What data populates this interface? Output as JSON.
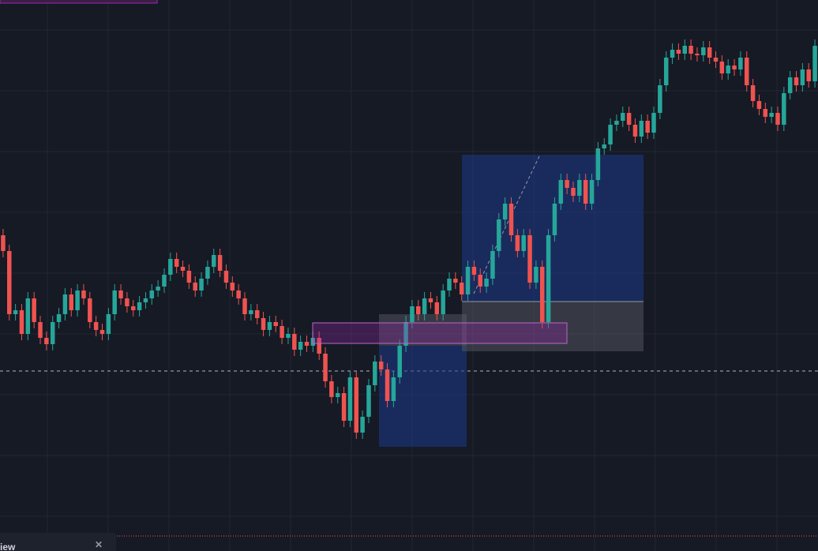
{
  "chart_data": {
    "type": "candlestick",
    "up_color": "#26a69a",
    "down_color": "#ef5350",
    "ylim": [
      0,
      698
    ],
    "grid": true,
    "price_line": 228,
    "open": [
      400,
      380,
      300,
      305,
      275,
      320,
      290,
      270,
      262,
      290,
      300,
      325,
      305,
      330,
      320,
      290,
      280,
      275,
      300,
      330,
      320,
      310,
      305,
      315,
      320,
      330,
      335,
      350,
      370,
      360,
      355,
      340,
      330,
      345,
      360,
      375,
      355,
      340,
      330,
      320,
      300,
      305,
      295,
      280,
      290,
      285,
      270,
      275,
      255,
      265,
      260,
      270,
      250,
      215,
      195,
      200,
      165,
      220,
      150,
      170,
      210,
      240,
      230,
      190,
      220,
      260,
      290,
      310,
      300,
      320,
      315,
      300,
      330,
      345,
      340,
      325,
      360,
      350,
      335,
      345,
      380,
      420,
      440,
      400,
      380,
      400,
      340,
      360,
      290,
      400,
      440,
      470,
      460,
      450,
      470,
      440,
      470,
      510,
      515,
      540,
      545,
      555,
      540,
      525,
      545,
      530,
      555,
      590,
      625,
      635,
      630,
      640,
      630,
      628,
      638,
      625,
      620,
      605,
      615,
      610,
      625,
      590,
      570,
      560,
      550,
      555,
      540,
      580,
      600,
      590,
      610,
      595
    ],
    "high": [
      408,
      388,
      313,
      313,
      328,
      328,
      298,
      278,
      298,
      308,
      333,
      333,
      338,
      338,
      328,
      298,
      288,
      308,
      338,
      338,
      328,
      318,
      323,
      328,
      338,
      343,
      358,
      378,
      378,
      368,
      363,
      348,
      353,
      368,
      383,
      383,
      363,
      348,
      338,
      328,
      313,
      313,
      303,
      298,
      298,
      293,
      283,
      283,
      273,
      273,
      278,
      278,
      258,
      223,
      208,
      208,
      228,
      228,
      178,
      218,
      248,
      248,
      238,
      228,
      268,
      298,
      318,
      318,
      328,
      328,
      323,
      338,
      353,
      353,
      348,
      368,
      368,
      358,
      353,
      388,
      428,
      448,
      448,
      408,
      408,
      408,
      368,
      368,
      408,
      448,
      478,
      478,
      468,
      478,
      478,
      478,
      518,
      523,
      548,
      553,
      563,
      563,
      548,
      553,
      553,
      563,
      598,
      633,
      643,
      643,
      648,
      648,
      638,
      646,
      646,
      633,
      628,
      623,
      623,
      633,
      633,
      598,
      578,
      568,
      563,
      563,
      588,
      608,
      608,
      618,
      618,
      648
    ],
    "low": [
      372,
      292,
      292,
      267,
      267,
      282,
      262,
      254,
      254,
      282,
      292,
      297,
      297,
      312,
      282,
      272,
      267,
      267,
      292,
      312,
      302,
      297,
      297,
      307,
      312,
      322,
      327,
      342,
      352,
      347,
      332,
      322,
      322,
      337,
      352,
      347,
      332,
      322,
      312,
      292,
      292,
      287,
      272,
      272,
      277,
      262,
      262,
      247,
      247,
      252,
      252,
      242,
      207,
      187,
      187,
      157,
      157,
      142,
      142,
      162,
      202,
      222,
      182,
      182,
      212,
      252,
      282,
      292,
      292,
      307,
      292,
      292,
      322,
      332,
      317,
      317,
      342,
      327,
      327,
      337,
      372,
      412,
      392,
      372,
      372,
      332,
      332,
      282,
      282,
      392,
      432,
      452,
      442,
      442,
      432,
      432,
      462,
      502,
      507,
      532,
      537,
      532,
      517,
      517,
      522,
      522,
      547,
      582,
      617,
      622,
      622,
      622,
      620,
      620,
      617,
      612,
      597,
      597,
      602,
      602,
      582,
      562,
      552,
      542,
      542,
      532,
      532,
      572,
      582,
      582,
      587,
      587
    ],
    "close": [
      380,
      300,
      305,
      275,
      320,
      290,
      270,
      262,
      290,
      300,
      325,
      305,
      330,
      320,
      290,
      280,
      275,
      300,
      330,
      320,
      310,
      305,
      315,
      320,
      330,
      335,
      350,
      370,
      360,
      355,
      340,
      330,
      345,
      360,
      375,
      355,
      340,
      330,
      320,
      300,
      305,
      295,
      280,
      290,
      285,
      270,
      275,
      255,
      265,
      260,
      270,
      250,
      215,
      195,
      200,
      165,
      220,
      150,
      170,
      210,
      240,
      230,
      190,
      220,
      260,
      290,
      310,
      300,
      320,
      315,
      300,
      330,
      345,
      340,
      325,
      360,
      350,
      335,
      345,
      380,
      420,
      440,
      400,
      380,
      400,
      340,
      360,
      290,
      400,
      440,
      470,
      460,
      450,
      470,
      440,
      470,
      510,
      515,
      540,
      545,
      555,
      540,
      525,
      545,
      530,
      555,
      590,
      625,
      635,
      630,
      640,
      630,
      628,
      638,
      625,
      620,
      605,
      615,
      610,
      625,
      590,
      570,
      560,
      550,
      555,
      540,
      580,
      600,
      590,
      610,
      595,
      640
    ]
  },
  "panel": {
    "label": "iew"
  }
}
